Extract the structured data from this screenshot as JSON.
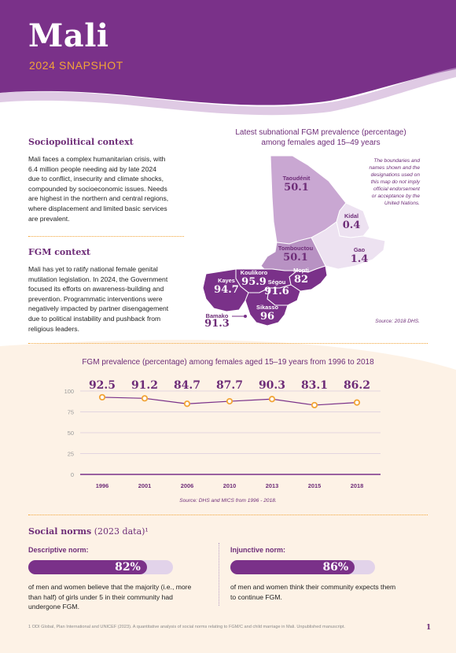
{
  "header": {
    "title": "Mali",
    "subtitle": "2024 SNAPSHOT"
  },
  "colors": {
    "brand_purple": "#7a3189",
    "accent_orange": "#f2a437",
    "light_lilac": "#e2d3ea",
    "cream": "#fdf2e6"
  },
  "sociopolitical": {
    "heading": "Sociopolitical context",
    "lines": [
      "Mali faces a complex humanitarian crisis, with",
      "6.4 million people needing aid by late 2024",
      "due to conflict, insecurity and climate shocks,",
      "compounded by socioeconomic issues. Needs",
      "are highest in the northern and central regions,",
      "where displacement and limited basic services",
      "are prevalent."
    ]
  },
  "fgm_context": {
    "heading": "FGM context",
    "lines": [
      "Mali has yet to ratify national female genital",
      "mutilation legislation. In 2024, the Government",
      "focused its efforts on awareness-building and",
      "prevention. Programmatic interventions were",
      "negatively impacted by partner disengagement",
      "due to political instability and pushback from",
      "religious leaders."
    ]
  },
  "map": {
    "title_line1": "Latest subnational FGM prevalence (percentage)",
    "title_line2": "among females aged 15–49 years",
    "disclaimer_lines": [
      "The boundaries and",
      "names shown and the",
      "designations used on",
      "this map do not imply",
      "official endorsement",
      "or acceptance by the",
      "United Nations."
    ],
    "source": "Source: 2018 DHS.",
    "regions": [
      {
        "name": "Taoudénit",
        "value": "50.1"
      },
      {
        "name": "Kidal",
        "value": "0.4"
      },
      {
        "name": "Gao",
        "value": "1.4"
      },
      {
        "name": "Tombouctou",
        "value": "50.1"
      },
      {
        "name": "Mopti",
        "value": "82"
      },
      {
        "name": "Koulikoro",
        "value": "95.9"
      },
      {
        "name": "Ségou",
        "value": "91.6"
      },
      {
        "name": "Kayes",
        "value": "94.7"
      },
      {
        "name": "Sikasso",
        "value": "96"
      },
      {
        "name": "Bamako",
        "value": "91.3"
      }
    ]
  },
  "chart_data": {
    "type": "line",
    "title": "FGM prevalence (percentage) among females aged 15–19 years from 1996 to 2018",
    "x": [
      "1996",
      "2001",
      "2006",
      "2010",
      "2013",
      "2015",
      "2018"
    ],
    "values": [
      92.5,
      91.2,
      84.7,
      87.7,
      90.3,
      83.1,
      86.2
    ],
    "data_labels": [
      "92.5",
      "91.2",
      "84.7",
      "87.7",
      "90.3",
      "83.1",
      "86.2"
    ],
    "y_ticks": [
      "0",
      "25",
      "50",
      "75",
      "100"
    ],
    "ylim": [
      0,
      100
    ],
    "grid": true,
    "source": "Source: DHS and MICS from 1996 - 2018."
  },
  "social_norms": {
    "heading": "Social norms",
    "heading_suffix": "(2023 data)¹",
    "descriptive": {
      "label": "Descriptive norm:",
      "value_text": "82%",
      "value": 0.82,
      "lines": [
        "of men and women believe that the majority (i.e., more",
        "than half) of girls under 5 in their community had",
        "undergone FGM."
      ]
    },
    "injunctive": {
      "label": "Injunctive norm:",
      "value_text": "86%",
      "value": 0.86,
      "lines": [
        "of men and women think their community expects them",
        "to continue FGM."
      ]
    }
  },
  "footer": {
    "footnote": "1      ODI Global, Plan International and UNICEF (2023). A quantitative analysis of social norms relating to FGM/C and child marriage in Mali. Unpublished manuscript.",
    "page_number": "1"
  }
}
